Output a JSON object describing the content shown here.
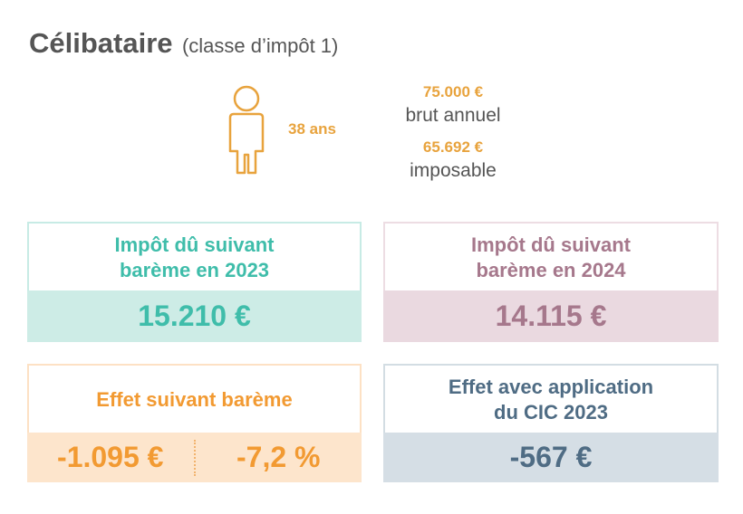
{
  "header": {
    "title": "Célibataire",
    "subtitle": "(classe d’impôt 1)"
  },
  "person": {
    "icon": "person-icon",
    "age": "38 ans"
  },
  "income": {
    "gross_amount": "75.000 €",
    "gross_label": "brut annuel",
    "taxable_amount": "65.692 €",
    "taxable_label": "imposable"
  },
  "cards": {
    "tax_2023": {
      "line1": "Impôt dû suivant",
      "line2": "barème en 2023",
      "value": "15.210 €"
    },
    "tax_2024": {
      "line1": "Impôt dû suivant",
      "line2": "barème en 2024",
      "value": "14.115 €"
    },
    "effect": {
      "label": "Effet suivant barème",
      "value_abs": "-1.095 €",
      "value_pct": "-7,2 %"
    },
    "effect_cic": {
      "line1": "Effet avec application",
      "line2": "du CIC 2023",
      "value": "-567 €"
    }
  },
  "colors": {
    "orange": "#e8a33d",
    "teal": "#3fbdaa",
    "mauve": "#a6788c",
    "slate": "#4f6c84",
    "text_gray": "#555555"
  }
}
